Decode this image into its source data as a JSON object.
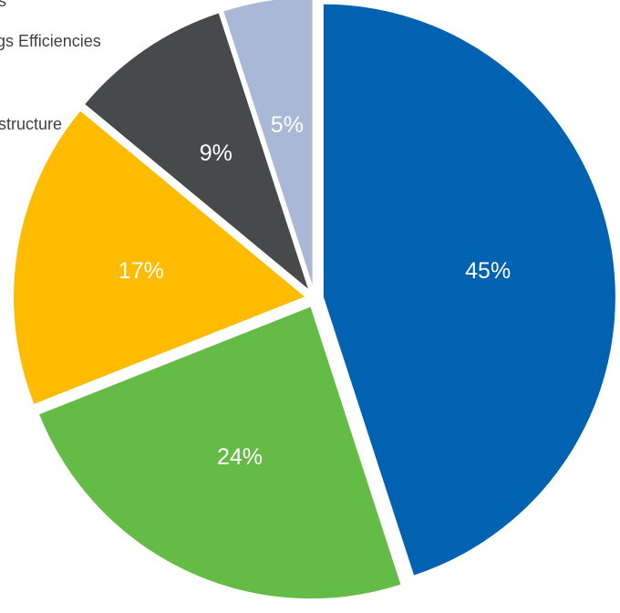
{
  "chart_data": {
    "type": "pie",
    "slices": [
      {
        "label": "45%",
        "value": 45,
        "color": "#0062b0",
        "label_color": "#ffffff"
      },
      {
        "label": "24%",
        "value": 24,
        "color": "#64bb46",
        "label_color": "#ffffff"
      },
      {
        "label": "17%",
        "value": 17,
        "color": "#ffbb00",
        "label_color": "#ffffff"
      },
      {
        "label": "9%",
        "value": 9,
        "color": "#48494b",
        "label_color": "#ffffff"
      },
      {
        "label": "5%",
        "value": 5,
        "color": "#a9b8d6",
        "label_color": "#ffffff"
      }
    ],
    "legend_fragments": [
      "s",
      "gs Efficiencies",
      "structure"
    ],
    "legend_placement": "top-left (clipped)"
  }
}
